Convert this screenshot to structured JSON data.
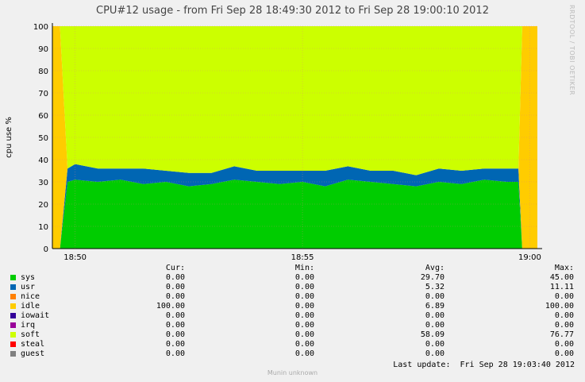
{
  "watermark": "RRDTOOL / TOBI OETIKER",
  "footer": "Munin unknown",
  "last_update": "Last update:  Fri Sep 28 19:03:40 2012",
  "legend": {
    "headers": [
      "Cur:",
      "Min:",
      "Avg:",
      "Max:"
    ],
    "rows": [
      {
        "name": "sys",
        "color": "#00cc00",
        "cur": "0.00",
        "min": "0.00",
        "avg": "29.70",
        "max": "45.00"
      },
      {
        "name": "usr",
        "color": "#0066b3",
        "cur": "0.00",
        "min": "0.00",
        "avg": "5.32",
        "max": "11.11"
      },
      {
        "name": "nice",
        "color": "#ff8000",
        "cur": "0.00",
        "min": "0.00",
        "avg": "0.00",
        "max": "0.00"
      },
      {
        "name": "idle",
        "color": "#ffcc00",
        "cur": "100.00",
        "min": "0.00",
        "avg": "6.89",
        "max": "100.00"
      },
      {
        "name": "iowait",
        "color": "#330099",
        "cur": "0.00",
        "min": "0.00",
        "avg": "0.00",
        "max": "0.00"
      },
      {
        "name": "irq",
        "color": "#990099",
        "cur": "0.00",
        "min": "0.00",
        "avg": "0.00",
        "max": "0.00"
      },
      {
        "name": "soft",
        "color": "#ccff00",
        "cur": "0.00",
        "min": "0.00",
        "avg": "58.09",
        "max": "76.77"
      },
      {
        "name": "steal",
        "color": "#ff0000",
        "cur": "0.00",
        "min": "0.00",
        "avg": "0.00",
        "max": "0.00"
      },
      {
        "name": "guest",
        "color": "#808080",
        "cur": "0.00",
        "min": "0.00",
        "avg": "0.00",
        "max": "0.00"
      }
    ]
  },
  "chart_data": {
    "type": "area",
    "title": "CPU#12 usage - from Fri Sep 28 18:49:30 2012 to Fri Sep 28 19:00:10 2012",
    "ylabel": "cpu use %",
    "xlabel": "",
    "ylim": [
      0,
      100
    ],
    "yticks": [
      0,
      10,
      20,
      30,
      40,
      50,
      60,
      70,
      80,
      90,
      100
    ],
    "xlim": [
      "18:49:30",
      "19:00:10"
    ],
    "xticks": [
      "18:50",
      "18:55",
      "19:00"
    ],
    "grid": true,
    "stacked": true,
    "x": [
      "18:49:30",
      "18:49:40",
      "18:49:50",
      "18:50:00",
      "18:50:30",
      "18:51:00",
      "18:51:30",
      "18:52:00",
      "18:52:30",
      "18:53:00",
      "18:53:30",
      "18:54:00",
      "18:54:30",
      "18:55:00",
      "18:55:30",
      "18:56:00",
      "18:56:30",
      "18:57:00",
      "18:57:30",
      "18:58:00",
      "18:58:30",
      "18:59:00",
      "18:59:30",
      "18:59:45",
      "18:59:50",
      "19:00:00",
      "19:00:10"
    ],
    "series": [
      {
        "name": "sys",
        "values": [
          0,
          0,
          30,
          31,
          30,
          31,
          29,
          30,
          28,
          29,
          31,
          30,
          29,
          30,
          28,
          31,
          30,
          29,
          28,
          30,
          29,
          31,
          30,
          30,
          0,
          0,
          0
        ]
      },
      {
        "name": "usr",
        "values": [
          0,
          0,
          6,
          7,
          6,
          5,
          7,
          5,
          6,
          5,
          6,
          5,
          6,
          5,
          7,
          6,
          5,
          6,
          5,
          6,
          6,
          5,
          6,
          6,
          0,
          0,
          0
        ]
      },
      {
        "name": "idle",
        "values": [
          100,
          100,
          0,
          0,
          0,
          0,
          0,
          0,
          0,
          0,
          0,
          0,
          0,
          0,
          0,
          0,
          0,
          0,
          0,
          0,
          0,
          0,
          0,
          0,
          100,
          100,
          100
        ]
      },
      {
        "name": "soft",
        "values": [
          0,
          0,
          64,
          62,
          64,
          64,
          64,
          65,
          66,
          66,
          63,
          65,
          65,
          65,
          65,
          63,
          65,
          65,
          67,
          64,
          65,
          64,
          64,
          64,
          0,
          0,
          0
        ]
      }
    ]
  }
}
